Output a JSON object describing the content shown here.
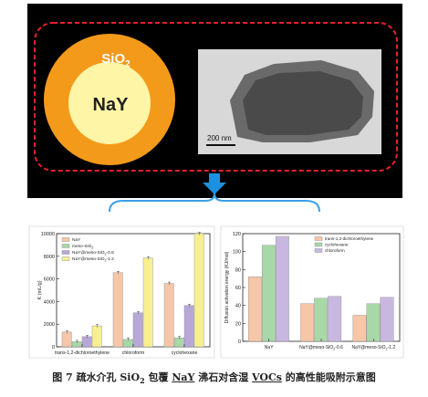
{
  "schematic": {
    "shell_label": "SiO",
    "shell_subscript": "2",
    "core_label": "NaY",
    "scale_bar_label": "200 nm",
    "colors": {
      "background": "#000000",
      "dashed_border": "#e8202a",
      "shell": "#f39a1a",
      "core": "#fff5a6",
      "arrow": "#1e90e0",
      "bracket": "#3aa0e8"
    }
  },
  "caption": {
    "part1": "图 7 疏水介孔 SiO",
    "sub": "2",
    "part2": " 包覆 ",
    "nay": "NaY",
    "part3": " 沸石对含湿 ",
    "vocs": "VOCs",
    "part4": " 的高性能吸附示意图"
  },
  "chart_data": [
    {
      "type": "bar",
      "categories": [
        "trans-1,2-dichloroethylene",
        "chloroform",
        "cyclohexane"
      ],
      "series": [
        {
          "name": "NaY",
          "values": [
            1300,
            6550,
            5600
          ],
          "color": "#f6c6a8"
        },
        {
          "name": "meso-SiO2",
          "values": [
            450,
            650,
            800
          ],
          "color": "#a8d8a8"
        },
        {
          "name": "NaY@meso-SiO2-0.6",
          "values": [
            900,
            3000,
            3650
          ],
          "color": "#b8a8d8"
        },
        {
          "name": "NaY@meso-SiO2-1.2",
          "values": [
            1850,
            7850,
            10000
          ],
          "color": "#f8f090"
        }
      ],
      "ylabel": "K (mL/g)",
      "ylim": [
        0,
        10000
      ],
      "yticks": [
        0,
        2000,
        4000,
        6000,
        8000,
        10000
      ],
      "legend_position": "top-left",
      "grid": false
    },
    {
      "type": "bar",
      "categories": [
        "NaY",
        "NaY@meso-SiO2-0.6",
        "NaY@meso-SiO2-1.2"
      ],
      "series": [
        {
          "name": "trans-1,2-dichloroethylene",
          "values": [
            72,
            42,
            29
          ],
          "color": "#f6c6a8"
        },
        {
          "name": "cyclohexane",
          "values": [
            107,
            48,
            42
          ],
          "color": "#a8d8a8"
        },
        {
          "name": "chloroform",
          "values": [
            117,
            50,
            49
          ],
          "color": "#c8b8e0"
        }
      ],
      "ylabel": "Diffusion activation energy (KJ/mol)",
      "ylim": [
        0,
        120
      ],
      "yticks": [
        0,
        20,
        40,
        60,
        80,
        100,
        120
      ],
      "legend_position": "top-left",
      "grid": false
    }
  ]
}
